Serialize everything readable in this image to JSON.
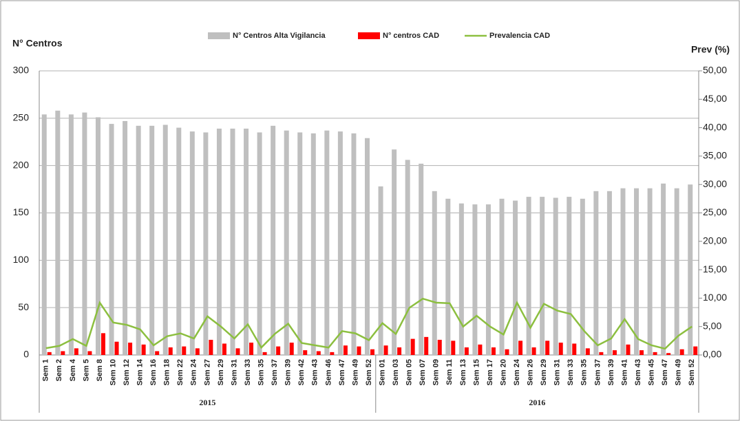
{
  "chart_data": {
    "type": "bar",
    "y_label": "N° Centros",
    "y2_label": "Prev (%)",
    "categories": [
      "Sem 1",
      "Sem 2",
      "Sem 4",
      "Sem 5",
      "Sem 8",
      "Sem 10",
      "Sem 12",
      "Sem 14",
      "Sem 16",
      "Sem 18",
      "Sem 22",
      "Sem 24",
      "Sem 27",
      "Sem 29",
      "Sem 31",
      "Sem 33",
      "Sem 35",
      "Sem 37",
      "Sem 39",
      "Sem 42",
      "Sem 43",
      "Sem 46",
      "Sem 47",
      "Sem 49",
      "Sem 52",
      "Sem 01",
      "Sem 03",
      "Sem 05",
      "Sem 07",
      "Sem 09",
      "Sem 11",
      "Sem 13",
      "Sem 15",
      "Sem 17",
      "Sem 20",
      "Sem 24",
      "Sem 26",
      "Sem 29",
      "Sem 31",
      "Sem 33",
      "Sem 35",
      "Sem 37",
      "Sem 39",
      "Sem 41",
      "Sem 43",
      "Sem 45",
      "Sem 47",
      "Sem 49",
      "Sem 52"
    ],
    "groups": [
      {
        "label": "2015",
        "span": 25
      },
      {
        "label": "2016",
        "span": 24
      }
    ],
    "series": [
      {
        "name": "N° Centros Alta Vigilancia",
        "type": "bar",
        "color": "#bfbfbf",
        "values": [
          254,
          258,
          254,
          256,
          251,
          244,
          247,
          242,
          242,
          243,
          240,
          236,
          235,
          239,
          239,
          239,
          235,
          242,
          237,
          235,
          234,
          237,
          236,
          234,
          229,
          178,
          217,
          206,
          202,
          173,
          165,
          160,
          159,
          159,
          165,
          163,
          167,
          167,
          166,
          167,
          165,
          173,
          173,
          176,
          176,
          176,
          181,
          176,
          180
        ]
      },
      {
        "name": "N° centros CAD",
        "type": "bar",
        "color": "#ff0000",
        "values": [
          3,
          4,
          7,
          4,
          23,
          14,
          13,
          11,
          4,
          8,
          9,
          7,
          16,
          12,
          7,
          13,
          3,
          9,
          13,
          5,
          4,
          3,
          10,
          9,
          6,
          10,
          8,
          17,
          19,
          16,
          15,
          8,
          11,
          8,
          6,
          15,
          8,
          15,
          13,
          12,
          7,
          3,
          5,
          11,
          5,
          3,
          2,
          6,
          9
        ]
      },
      {
        "name": "Prevalencia CAD",
        "type": "line",
        "axis": "y2",
        "color": "#8cbf3f",
        "values": [
          1.2,
          1.6,
          2.8,
          1.6,
          9.2,
          5.7,
          5.3,
          4.5,
          1.7,
          3.3,
          3.8,
          2.9,
          6.8,
          5.0,
          2.9,
          5.4,
          1.3,
          3.7,
          5.5,
          2.1,
          1.7,
          1.3,
          4.2,
          3.8,
          2.6,
          5.6,
          3.7,
          8.3,
          9.9,
          9.2,
          9.1,
          5.0,
          6.9,
          5.0,
          3.6,
          9.2,
          4.8,
          9.0,
          7.8,
          7.2,
          4.2,
          1.7,
          2.9,
          6.3,
          2.8,
          1.7,
          1.1,
          3.4,
          5.0
        ]
      }
    ],
    "ylim": [
      0,
      300
    ],
    "yticks": [
      0,
      50,
      100,
      150,
      200,
      250,
      300
    ],
    "y2lim": [
      0,
      50
    ],
    "y2ticks": [
      {
        "value": 0,
        "label": "0,00"
      },
      {
        "value": 5,
        "label": "5,00"
      },
      {
        "value": 10,
        "label": "10,00"
      },
      {
        "value": 15,
        "label": "15,00"
      },
      {
        "value": 20,
        "label": "20,00"
      },
      {
        "value": 25,
        "label": "25,00"
      },
      {
        "value": 30,
        "label": "30,00"
      },
      {
        "value": 35,
        "label": "35,00"
      },
      {
        "value": 40,
        "label": "40,00"
      },
      {
        "value": 45,
        "label": "45,00"
      },
      {
        "value": 50,
        "label": "50,00"
      }
    ],
    "grid": true,
    "legend": "top"
  }
}
